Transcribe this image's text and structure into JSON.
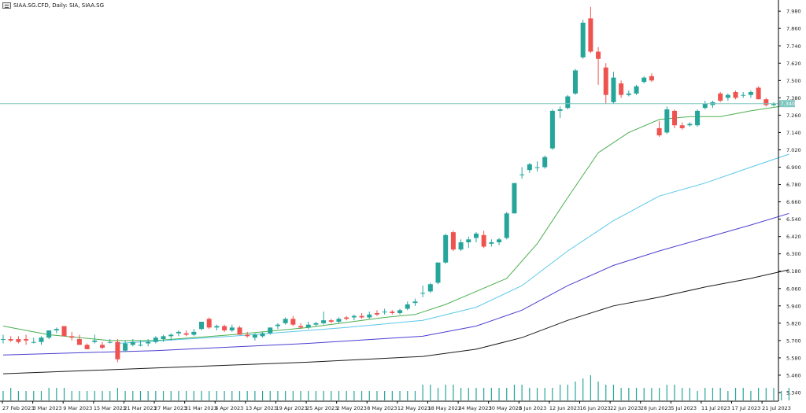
{
  "header": {
    "title": "SIAA.SG.CFD, Daily:  SIA, SIAA.SG"
  },
  "colors": {
    "up": "#26a69a",
    "down": "#ef5350",
    "ma_green": "#4caf50",
    "ma_cyan": "#5ac8e8",
    "ma_blue": "#4b3fd0",
    "ma_black": "#1a1a1a",
    "price_line": "#7ec6bf"
  },
  "chart_data": {
    "type": "candlestick",
    "ylim": [
      5.28,
      8.03
    ],
    "grid": false,
    "current_price": 7.34,
    "current_price_label": "7.340",
    "y_ticks": [
      "7.980",
      "7.860",
      "7.740",
      "7.620",
      "7.500",
      "7.380",
      "7.260",
      "7.140",
      "7.020",
      "6.900",
      "6.780",
      "6.660",
      "6.540",
      "6.420",
      "6.300",
      "6.180",
      "6.060",
      "5.940",
      "5.820",
      "5.700",
      "5.580",
      "5.460",
      "5.340"
    ],
    "x_labels": [
      "27 Feb 2023",
      "3 Mar 2023",
      "9 Mar 2023",
      "15 Mar 2023",
      "21 Mar 2023",
      "27 Mar 2023",
      "31 Mar 2023",
      "6 Apr 2023",
      "13 Apr 2023",
      "19 Apr 2023",
      "25 Apr 2023",
      "2 May 2023",
      "8 May 2023",
      "12 May 2023",
      "18 May 2023",
      "24 May 2023",
      "30 May 2023",
      "6 Jun 2023",
      "12 Jun 2023",
      "16 Jun 2023",
      "22 Jun 2023",
      "28 Jun 2023",
      "5 Jul 2023",
      "11 Jul 2023",
      "17 Jul 2023",
      "21 Jul 2023"
    ],
    "candles": [
      {
        "o": 5.71,
        "h": 5.74,
        "l": 5.68,
        "c": 5.71
      },
      {
        "o": 5.71,
        "h": 5.73,
        "l": 5.69,
        "c": 5.7
      },
      {
        "o": 5.71,
        "h": 5.73,
        "l": 5.68,
        "c": 5.69
      },
      {
        "o": 5.71,
        "h": 5.74,
        "l": 5.67,
        "c": 5.7
      },
      {
        "o": 5.69,
        "h": 5.72,
        "l": 5.68,
        "c": 5.69
      },
      {
        "o": 5.69,
        "h": 5.73,
        "l": 5.67,
        "c": 5.72
      },
      {
        "o": 5.72,
        "h": 5.77,
        "l": 5.71,
        "c": 5.77
      },
      {
        "o": 5.77,
        "h": 5.79,
        "l": 5.75,
        "c": 5.78
      },
      {
        "o": 5.8,
        "h": 5.8,
        "l": 5.73,
        "c": 5.73
      },
      {
        "o": 5.73,
        "h": 5.76,
        "l": 5.7,
        "c": 5.72
      },
      {
        "o": 5.71,
        "h": 5.74,
        "l": 5.67,
        "c": 5.67
      },
      {
        "o": 5.67,
        "h": 5.68,
        "l": 5.64,
        "c": 5.64
      },
      {
        "o": 5.69,
        "h": 5.74,
        "l": 5.68,
        "c": 5.7
      },
      {
        "o": 5.67,
        "h": 5.69,
        "l": 5.64,
        "c": 5.65
      },
      {
        "o": 5.69,
        "h": 5.71,
        "l": 5.68,
        "c": 5.69
      },
      {
        "o": 5.69,
        "h": 5.71,
        "l": 5.55,
        "c": 5.57
      },
      {
        "o": 5.63,
        "h": 5.7,
        "l": 5.62,
        "c": 5.68
      },
      {
        "o": 5.67,
        "h": 5.71,
        "l": 5.66,
        "c": 5.69
      },
      {
        "o": 5.67,
        "h": 5.7,
        "l": 5.66,
        "c": 5.67
      },
      {
        "o": 5.68,
        "h": 5.71,
        "l": 5.66,
        "c": 5.69
      },
      {
        "o": 5.69,
        "h": 5.73,
        "l": 5.68,
        "c": 5.72
      },
      {
        "o": 5.71,
        "h": 5.74,
        "l": 5.69,
        "c": 5.73
      },
      {
        "o": 5.73,
        "h": 5.75,
        "l": 5.7,
        "c": 5.74
      },
      {
        "o": 5.75,
        "h": 5.77,
        "l": 5.73,
        "c": 5.76
      },
      {
        "o": 5.75,
        "h": 5.77,
        "l": 5.73,
        "c": 5.74
      },
      {
        "o": 5.74,
        "h": 5.78,
        "l": 5.73,
        "c": 5.76
      },
      {
        "o": 5.78,
        "h": 5.83,
        "l": 5.77,
        "c": 5.83
      },
      {
        "o": 5.85,
        "h": 5.86,
        "l": 5.78,
        "c": 5.79
      },
      {
        "o": 5.79,
        "h": 5.81,
        "l": 5.77,
        "c": 5.8
      },
      {
        "o": 5.8,
        "h": 5.81,
        "l": 5.76,
        "c": 5.77
      },
      {
        "o": 5.77,
        "h": 5.81,
        "l": 5.76,
        "c": 5.79
      },
      {
        "o": 5.79,
        "h": 5.8,
        "l": 5.74,
        "c": 5.74
      },
      {
        "o": 5.74,
        "h": 5.76,
        "l": 5.72,
        "c": 5.73
      },
      {
        "o": 5.72,
        "h": 5.75,
        "l": 5.7,
        "c": 5.74
      },
      {
        "o": 5.73,
        "h": 5.76,
        "l": 5.72,
        "c": 5.75
      },
      {
        "o": 5.75,
        "h": 5.79,
        "l": 5.74,
        "c": 5.79
      },
      {
        "o": 5.8,
        "h": 5.82,
        "l": 5.78,
        "c": 5.81
      },
      {
        "o": 5.82,
        "h": 5.86,
        "l": 5.81,
        "c": 5.85
      },
      {
        "o": 5.85,
        "h": 5.87,
        "l": 5.8,
        "c": 5.81
      },
      {
        "o": 5.8,
        "h": 5.82,
        "l": 5.78,
        "c": 5.79
      },
      {
        "o": 5.79,
        "h": 5.83,
        "l": 5.78,
        "c": 5.81
      },
      {
        "o": 5.81,
        "h": 5.83,
        "l": 5.8,
        "c": 5.82
      },
      {
        "o": 5.82,
        "h": 5.9,
        "l": 5.81,
        "c": 5.84
      },
      {
        "o": 5.84,
        "h": 5.85,
        "l": 5.82,
        "c": 5.83
      },
      {
        "o": 5.83,
        "h": 5.86,
        "l": 5.82,
        "c": 5.85
      },
      {
        "o": 5.86,
        "h": 5.87,
        "l": 5.84,
        "c": 5.85
      },
      {
        "o": 5.86,
        "h": 5.88,
        "l": 5.84,
        "c": 5.87
      },
      {
        "o": 5.87,
        "h": 5.89,
        "l": 5.85,
        "c": 5.86
      },
      {
        "o": 5.86,
        "h": 5.9,
        "l": 5.85,
        "c": 5.88
      },
      {
        "o": 5.89,
        "h": 5.91,
        "l": 5.87,
        "c": 5.88
      },
      {
        "o": 5.9,
        "h": 5.92,
        "l": 5.88,
        "c": 5.9
      },
      {
        "o": 5.9,
        "h": 5.91,
        "l": 5.88,
        "c": 5.89
      },
      {
        "o": 5.89,
        "h": 5.92,
        "l": 5.88,
        "c": 5.91
      },
      {
        "o": 5.92,
        "h": 5.97,
        "l": 5.91,
        "c": 5.95
      },
      {
        "o": 5.96,
        "h": 5.99,
        "l": 5.94,
        "c": 5.97
      },
      {
        "o": 6.03,
        "h": 6.08,
        "l": 6.0,
        "c": 6.03
      },
      {
        "o": 6.04,
        "h": 6.1,
        "l": 6.03,
        "c": 6.09
      },
      {
        "o": 6.1,
        "h": 6.24,
        "l": 6.09,
        "c": 6.24
      },
      {
        "o": 6.24,
        "h": 6.44,
        "l": 6.23,
        "c": 6.43
      },
      {
        "o": 6.45,
        "h": 6.46,
        "l": 6.32,
        "c": 6.33
      },
      {
        "o": 6.33,
        "h": 6.4,
        "l": 6.32,
        "c": 6.38
      },
      {
        "o": 6.38,
        "h": 6.42,
        "l": 6.34,
        "c": 6.4
      },
      {
        "o": 6.41,
        "h": 6.45,
        "l": 6.38,
        "c": 6.44
      },
      {
        "o": 6.43,
        "h": 6.46,
        "l": 6.34,
        "c": 6.35
      },
      {
        "o": 6.37,
        "h": 6.4,
        "l": 6.35,
        "c": 6.38
      },
      {
        "o": 6.38,
        "h": 6.41,
        "l": 6.36,
        "c": 6.4
      },
      {
        "o": 6.41,
        "h": 6.59,
        "l": 6.4,
        "c": 6.58
      },
      {
        "o": 6.58,
        "h": 6.79,
        "l": 6.58,
        "c": 6.79
      },
      {
        "o": 6.85,
        "h": 6.9,
        "l": 6.82,
        "c": 6.85
      },
      {
        "o": 6.88,
        "h": 6.93,
        "l": 6.86,
        "c": 6.92
      },
      {
        "o": 6.9,
        "h": 6.94,
        "l": 6.87,
        "c": 6.9
      },
      {
        "o": 6.9,
        "h": 6.98,
        "l": 6.89,
        "c": 6.97
      },
      {
        "o": 7.03,
        "h": 7.3,
        "l": 7.02,
        "c": 7.29
      },
      {
        "o": 7.29,
        "h": 7.32,
        "l": 7.24,
        "c": 7.3
      },
      {
        "o": 7.31,
        "h": 7.4,
        "l": 7.3,
        "c": 7.39
      },
      {
        "o": 7.41,
        "h": 7.58,
        "l": 7.4,
        "c": 7.57
      },
      {
        "o": 7.66,
        "h": 7.92,
        "l": 7.65,
        "c": 7.9
      },
      {
        "o": 7.93,
        "h": 8.01,
        "l": 7.69,
        "c": 7.7
      },
      {
        "o": 7.7,
        "h": 7.73,
        "l": 7.47,
        "c": 7.65
      },
      {
        "o": 7.59,
        "h": 7.62,
        "l": 7.34,
        "c": 7.4
      },
      {
        "o": 7.35,
        "h": 7.56,
        "l": 7.34,
        "c": 7.52
      },
      {
        "o": 7.48,
        "h": 7.5,
        "l": 7.38,
        "c": 7.4
      },
      {
        "o": 7.4,
        "h": 7.43,
        "l": 7.39,
        "c": 7.41
      },
      {
        "o": 7.41,
        "h": 7.47,
        "l": 7.4,
        "c": 7.46
      },
      {
        "o": 7.49,
        "h": 7.53,
        "l": 7.48,
        "c": 7.52
      },
      {
        "o": 7.53,
        "h": 7.55,
        "l": 7.49,
        "c": 7.5
      },
      {
        "o": 7.17,
        "h": 7.22,
        "l": 7.11,
        "c": 7.12
      },
      {
        "o": 7.14,
        "h": 7.32,
        "l": 7.13,
        "c": 7.3
      },
      {
        "o": 7.29,
        "h": 7.3,
        "l": 7.17,
        "c": 7.19
      },
      {
        "o": 7.19,
        "h": 7.21,
        "l": 7.16,
        "c": 7.17
      },
      {
        "o": 7.19,
        "h": 7.21,
        "l": 7.18,
        "c": 7.2
      },
      {
        "o": 7.19,
        "h": 7.3,
        "l": 7.18,
        "c": 7.29
      },
      {
        "o": 7.31,
        "h": 7.36,
        "l": 7.3,
        "c": 7.34
      },
      {
        "o": 7.33,
        "h": 7.36,
        "l": 7.31,
        "c": 7.35
      },
      {
        "o": 7.41,
        "h": 7.42,
        "l": 7.35,
        "c": 7.36
      },
      {
        "o": 7.38,
        "h": 7.41,
        "l": 7.36,
        "c": 7.4
      },
      {
        "o": 7.42,
        "h": 7.43,
        "l": 7.37,
        "c": 7.38
      },
      {
        "o": 7.4,
        "h": 7.42,
        "l": 7.38,
        "c": 7.4
      },
      {
        "o": 7.4,
        "h": 7.43,
        "l": 7.38,
        "c": 7.42
      },
      {
        "o": 7.45,
        "h": 7.46,
        "l": 7.37,
        "c": 7.37
      },
      {
        "o": 7.37,
        "h": 7.38,
        "l": 7.32,
        "c": 7.33
      },
      {
        "o": 7.33,
        "h": 7.35,
        "l": 7.32,
        "c": 7.34
      }
    ],
    "ma_green": [
      [
        0,
        5.8
      ],
      [
        6,
        5.74
      ],
      [
        14,
        5.7
      ],
      [
        20,
        5.7
      ],
      [
        30,
        5.74
      ],
      [
        40,
        5.79
      ],
      [
        50,
        5.86
      ],
      [
        54,
        5.88
      ],
      [
        58,
        5.95
      ],
      [
        62,
        6.04
      ],
      [
        66,
        6.13
      ],
      [
        70,
        6.37
      ],
      [
        74,
        6.69
      ],
      [
        78,
        7.0
      ],
      [
        82,
        7.14
      ],
      [
        86,
        7.23
      ],
      [
        90,
        7.25
      ],
      [
        94,
        7.25
      ],
      [
        98,
        7.29
      ],
      [
        103,
        7.33
      ]
    ],
    "ma_cyan": [
      [
        15,
        5.68
      ],
      [
        30,
        5.73
      ],
      [
        45,
        5.79
      ],
      [
        55,
        5.84
      ],
      [
        62,
        5.93
      ],
      [
        68,
        6.08
      ],
      [
        74,
        6.32
      ],
      [
        80,
        6.53
      ],
      [
        86,
        6.7
      ],
      [
        92,
        6.79
      ],
      [
        98,
        6.9
      ],
      [
        103,
        6.99
      ]
    ],
    "ma_blue": [
      [
        0,
        5.6
      ],
      [
        20,
        5.63
      ],
      [
        40,
        5.68
      ],
      [
        55,
        5.73
      ],
      [
        62,
        5.8
      ],
      [
        68,
        5.91
      ],
      [
        74,
        6.08
      ],
      [
        80,
        6.22
      ],
      [
        86,
        6.32
      ],
      [
        92,
        6.41
      ],
      [
        98,
        6.5
      ],
      [
        103,
        6.58
      ]
    ],
    "ma_black": [
      [
        0,
        5.47
      ],
      [
        20,
        5.51
      ],
      [
        40,
        5.55
      ],
      [
        55,
        5.59
      ],
      [
        62,
        5.64
      ],
      [
        68,
        5.72
      ],
      [
        74,
        5.84
      ],
      [
        80,
        5.94
      ],
      [
        86,
        6.0
      ],
      [
        92,
        6.07
      ],
      [
        98,
        6.13
      ],
      [
        103,
        6.19
      ]
    ],
    "volume": [
      3,
      4,
      3,
      3,
      3,
      3,
      4,
      4,
      4,
      3,
      3,
      3,
      3,
      3,
      3,
      4,
      3,
      3,
      3,
      3,
      3,
      3,
      3,
      3,
      3,
      3,
      3,
      3,
      3,
      3,
      3,
      3,
      3,
      3,
      3,
      3,
      3,
      3,
      3,
      3,
      3,
      3,
      3,
      3,
      3,
      3,
      3,
      3,
      3,
      3,
      3,
      3,
      3,
      3,
      3,
      5,
      5,
      4,
      5,
      5,
      4,
      4,
      4,
      4,
      4,
      4,
      4,
      5,
      5,
      4,
      4,
      4,
      4,
      5,
      5,
      6,
      7,
      8,
      6,
      5,
      5,
      4,
      4,
      4,
      4,
      4,
      4,
      5,
      5,
      4,
      4,
      3,
      4,
      4,
      4,
      3,
      4,
      4,
      3,
      4,
      4,
      4,
      3,
      4
    ]
  }
}
